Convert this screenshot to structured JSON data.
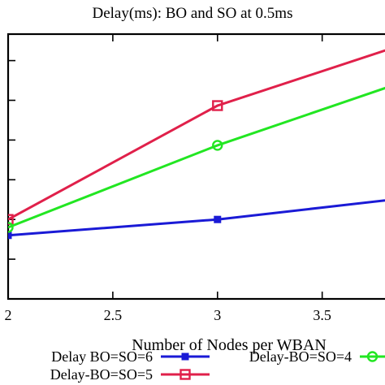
{
  "chart_data": {
    "type": "line",
    "title": "Delay(ms): BO and SO at 0.5ms",
    "xlabel": "Number of Nodes per WBAN",
    "ylabel": "",
    "x_ticks": [
      "2",
      "2.5",
      "3",
      "3.5"
    ],
    "x_tick_values": [
      2,
      2.5,
      3,
      3.5
    ],
    "xlim": [
      2,
      3.8
    ],
    "ylim": [
      0,
      1
    ],
    "y_ticks": [
      0.0,
      0.15,
      0.3,
      0.45,
      0.6,
      0.75,
      0.9
    ],
    "y_tick_labels_visible": false,
    "grid": false,
    "legend_position": "bottom",
    "series": [
      {
        "name": "Delay BO=SO=6",
        "color": "#1a1ad6",
        "marker": "filled-square",
        "x": [
          2,
          3,
          4
        ],
        "y": [
          0.24,
          0.3,
          0.39
        ]
      },
      {
        "name": "Delay-BO=SO=5",
        "color": "#e0204a",
        "marker": "open-square",
        "x": [
          2,
          3,
          4
        ],
        "y": [
          0.3,
          0.73,
          0.99
        ]
      },
      {
        "name": "Delay-BO=SO=4",
        "color": "#22e622",
        "marker": "open-circle",
        "x": [
          2,
          3,
          4
        ],
        "y": [
          0.27,
          0.58,
          0.85
        ]
      }
    ]
  }
}
